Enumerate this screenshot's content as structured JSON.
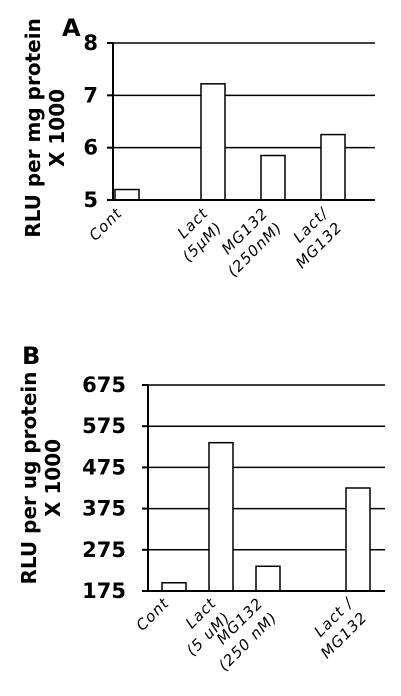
{
  "chart_data": [
    {
      "type": "bar",
      "panel": "A",
      "ylabel": [
        "RLU per mg protein",
        "X 1000"
      ],
      "categories": [
        [
          "Cont"
        ],
        [
          "Lact",
          "(5μM)"
        ],
        [
          "MG132",
          "(250nM)"
        ],
        [
          "Lact/",
          "MG132"
        ]
      ],
      "values": [
        5.2,
        7.22,
        5.85,
        6.25
      ],
      "ylim": [
        5,
        8
      ],
      "yticks": [
        "5",
        "6",
        "7",
        "8"
      ],
      "ytick_values": [
        5,
        6,
        7,
        8
      ],
      "grid": true
    },
    {
      "type": "bar",
      "panel": "B",
      "ylabel": [
        "RLU per ug protein",
        "X 1000"
      ],
      "categories": [
        [
          "Cont"
        ],
        [
          "Lact",
          "(5 uM)"
        ],
        [
          "MG132",
          "(250 nM)"
        ],
        [
          "Lact /",
          "MG132"
        ]
      ],
      "values": [
        195,
        535,
        235,
        425
      ],
      "ylim": [
        175,
        675
      ],
      "yticks": [
        "175",
        "275",
        "375",
        "475",
        "575",
        "675"
      ],
      "ytick_values": [
        175,
        275,
        375,
        475,
        575,
        675
      ],
      "grid": true
    }
  ]
}
